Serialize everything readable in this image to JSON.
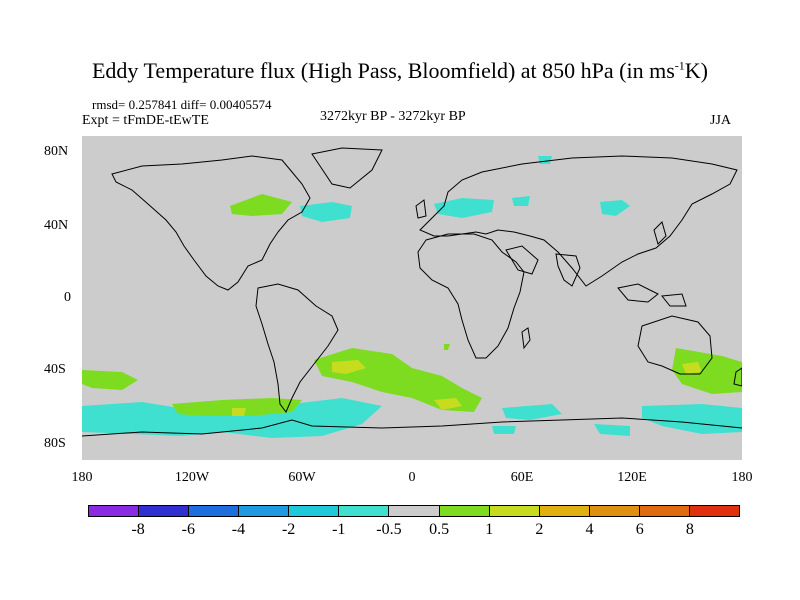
{
  "title": {
    "main": "Eddy Temperature flux (High Pass, Bloomfield) at 850 hPa (in ms",
    "superscript": "-1",
    "suffix": "K)"
  },
  "stats": {
    "rmsd_diff": "rmsd= 0.257841 diff= 0.00405574",
    "experiment": "Expt = tFmDE-tEwTE",
    "period": "3272kyr BP - 3272kyr BP",
    "season": "JJA"
  },
  "axes": {
    "y_ticks": [
      "80N",
      "40N",
      "0",
      "40S",
      "80S"
    ],
    "x_ticks": [
      "180",
      "120W",
      "60W",
      "0",
      "60E",
      "120E",
      "180"
    ]
  },
  "colorbar": {
    "colors": [
      "#8a2be2",
      "#3030d0",
      "#1e6ee0",
      "#1e9be0",
      "#20c8dc",
      "#40e0d0",
      "#cccccc",
      "#7ddc1f",
      "#c8dc1f",
      "#e0b010",
      "#e09010",
      "#e06a10",
      "#e03010"
    ],
    "labels": [
      "-8",
      "-6",
      "-4",
      "-2",
      "-1",
      "-0.5",
      "0.5",
      "1",
      "2",
      "4",
      "6",
      "8"
    ]
  },
  "map_colors": {
    "ocean": "#cccccc",
    "coast": "#000000",
    "cyan": "#40e0d0",
    "green": "#7ddc1f",
    "yellow": "#c8dc1f"
  }
}
